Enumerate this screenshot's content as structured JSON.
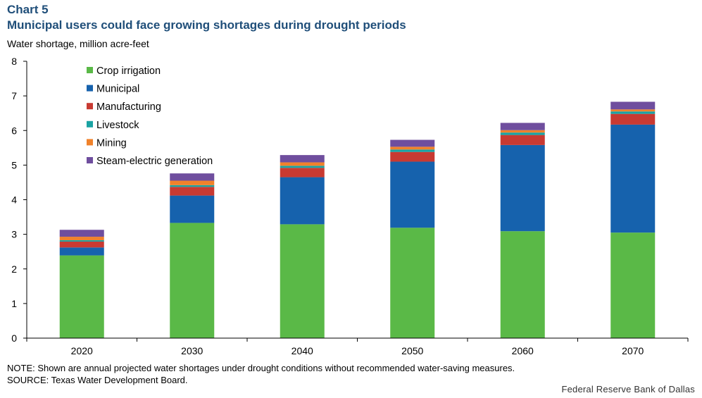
{
  "header": {
    "label": "Chart 5",
    "title": "Municipal users could face growing shortages during drought periods",
    "ylabel": "Water shortage, million acre-feet"
  },
  "footer": {
    "note": "NOTE: Shown are annual projected water shortages under drought conditions without recommended water-saving measures.",
    "source": "SOURCE: Texas Water Development Board.",
    "credit": "Federal Reserve Bank of Dallas"
  },
  "chart_data": {
    "type": "bar",
    "stacked": true,
    "title": "Municipal users could face growing shortages during drought periods",
    "ylabel": "Water shortage, million acre-feet",
    "xlabel": "",
    "categories": [
      "2020",
      "2030",
      "2040",
      "2050",
      "2060",
      "2070"
    ],
    "ylim": [
      0,
      8
    ],
    "yticks": [
      0,
      1,
      2,
      3,
      4,
      5,
      6,
      7,
      8
    ],
    "grid": false,
    "legend_position": "top-left",
    "series": [
      {
        "name": "Crop irrigation",
        "color": "#5ab947",
        "values": [
          2.39,
          3.33,
          3.29,
          3.19,
          3.09,
          3.05
        ]
      },
      {
        "name": "Municipal",
        "color": "#1662ad",
        "values": [
          0.23,
          0.79,
          1.36,
          1.91,
          2.49,
          3.12
        ]
      },
      {
        "name": "Manufacturing",
        "color": "#c83a32",
        "values": [
          0.17,
          0.25,
          0.27,
          0.28,
          0.29,
          0.31
        ]
      },
      {
        "name": "Livestock",
        "color": "#1aa3a3",
        "values": [
          0.04,
          0.05,
          0.06,
          0.07,
          0.07,
          0.07
        ]
      },
      {
        "name": "Mining",
        "color": "#f0822b",
        "values": [
          0.1,
          0.13,
          0.1,
          0.08,
          0.07,
          0.06
        ]
      },
      {
        "name": "Steam-electric generation",
        "color": "#6f4e9e",
        "values": [
          0.2,
          0.21,
          0.21,
          0.2,
          0.21,
          0.22
        ]
      }
    ]
  }
}
